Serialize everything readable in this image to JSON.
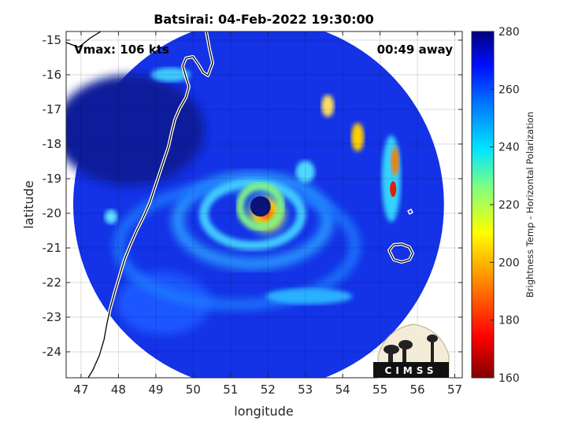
{
  "chart_data": {
    "type": "heatmap",
    "title": "Batsirai: 04-Feb-2022 19:30:00",
    "xlabel": "longitude",
    "ylabel": "latitude",
    "xlim": [
      46.6,
      57.2
    ],
    "ylim": [
      -24.75,
      -14.75
    ],
    "xticks": [
      47,
      48,
      49,
      50,
      51,
      52,
      53,
      54,
      55,
      56,
      57
    ],
    "yticks": [
      -15,
      -16,
      -17,
      -18,
      -19,
      -20,
      -21,
      -22,
      -23,
      -24
    ],
    "grid": true,
    "annotations": {
      "vmax": "Vmax: 106 kts",
      "time_away": "00:49 away"
    },
    "colorbar": {
      "label": "Brightness Temp - Horizontal Polarization",
      "range": [
        160,
        280
      ],
      "ticks": [
        160,
        180,
        200,
        220,
        240,
        260,
        280
      ],
      "colormap": "jet"
    },
    "swath": {
      "center": [
        51.75,
        -19.75
      ],
      "radius_deg_lat": 5.35
    },
    "eye": {
      "center": [
        51.8,
        -19.8
      ]
    },
    "logo_text": "CIMSS"
  }
}
